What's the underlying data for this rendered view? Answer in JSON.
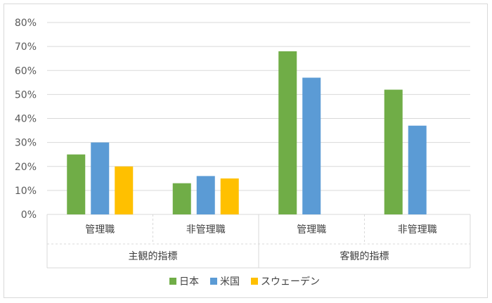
{
  "colors": {
    "japan": "#70ad47",
    "usa": "#5b9bd5",
    "sweden": "#ffc000",
    "grid": "#d9d9d9",
    "text": "#595959"
  },
  "chart_data": {
    "type": "bar",
    "title": "",
    "xlabel": "",
    "ylabel": "",
    "ylim": [
      0,
      0.8
    ],
    "yticks": [
      "0%",
      "10%",
      "20%",
      "30%",
      "40%",
      "50%",
      "60%",
      "70%",
      "80%"
    ],
    "categories": [
      "管理職",
      "非管理職",
      "管理職",
      "非管理職"
    ],
    "groups": [
      {
        "label": "主観的指標",
        "categories": [
          "管理職",
          "非管理職"
        ]
      },
      {
        "label": "客観的指標",
        "categories": [
          "管理職",
          "非管理職"
        ]
      }
    ],
    "series": [
      {
        "name": "日本",
        "values": [
          0.25,
          0.13,
          0.68,
          0.52
        ]
      },
      {
        "name": "米国",
        "values": [
          0.3,
          0.16,
          0.57,
          0.37
        ]
      },
      {
        "name": "スウェーデン",
        "values": [
          0.2,
          0.15,
          null,
          null
        ]
      }
    ],
    "grid": true,
    "legend": "bottom"
  }
}
